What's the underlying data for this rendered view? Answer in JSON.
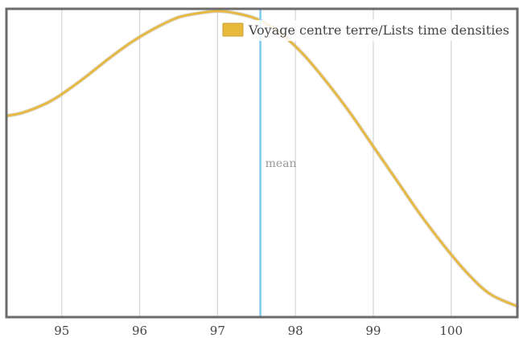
{
  "chart_data": {
    "type": "line",
    "title": "",
    "xlabel": "",
    "ylabel": "",
    "xlim": [
      94.3,
      100.85
    ],
    "ylim": [
      0,
      1
    ],
    "x_ticks": [
      "95",
      "96",
      "97",
      "98",
      "99",
      "100"
    ],
    "grid": "vertical",
    "legend_position": "top-right",
    "series": [
      {
        "name": "Voyage centre terre/Lists time densities",
        "color": "#e8b93a",
        "x": [
          94.3,
          94.5,
          94.8,
          95.0,
          95.3,
          95.6,
          95.9,
          96.2,
          96.5,
          96.8,
          97.0,
          97.2,
          97.5,
          97.8,
          98.1,
          98.4,
          98.7,
          99.0,
          99.3,
          99.6,
          99.9,
          100.2,
          100.5,
          100.85
        ],
        "y": [
          0.655,
          0.665,
          0.695,
          0.725,
          0.78,
          0.84,
          0.895,
          0.94,
          0.975,
          0.99,
          0.995,
          0.99,
          0.97,
          0.925,
          0.855,
          0.765,
          0.665,
          0.555,
          0.445,
          0.335,
          0.235,
          0.145,
          0.075,
          0.035
        ]
      }
    ],
    "annotations": [
      {
        "label": "mean",
        "x": 97.55,
        "color": "#7ec8f0"
      }
    ]
  }
}
